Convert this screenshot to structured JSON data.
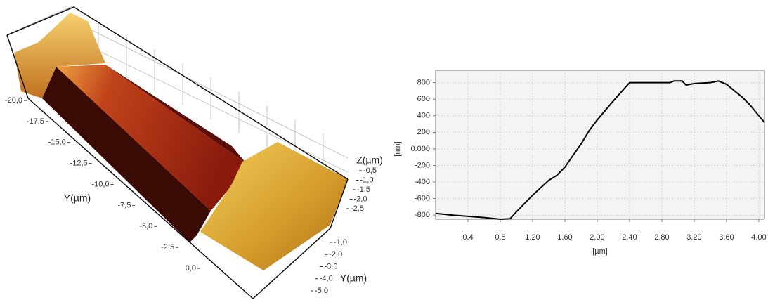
{
  "chart_data": [
    {
      "type": "surface3d",
      "ylabel": "Y(µm)",
      "zlabel": "Z(µm)",
      "xlabel": "Y(µm)",
      "ylim": [
        -20,
        0
      ],
      "yticks": [
        {
          "value": -20,
          "label": "-20,0"
        },
        {
          "value": -17.5,
          "label": "-17,5"
        },
        {
          "value": -15,
          "label": "-15,0"
        },
        {
          "value": -12.5,
          "label": "-12,5"
        },
        {
          "value": -10,
          "label": "-10,0"
        },
        {
          "value": -7.5,
          "label": "-7,5"
        },
        {
          "value": -5,
          "label": "-5,0"
        },
        {
          "value": -2.5,
          "label": "-2,5"
        },
        {
          "value": 0,
          "label": "0,0"
        }
      ],
      "zlim": [
        -2.5,
        -0.5
      ],
      "zticks": [
        {
          "value": -0.5,
          "label": "-0,5"
        },
        {
          "value": -1,
          "label": "-1,0"
        },
        {
          "value": -1.5,
          "label": "-1,5"
        },
        {
          "value": -2,
          "label": "-2,0"
        },
        {
          "value": -2.5,
          "label": "-2,5"
        }
      ],
      "xlim": [
        -5,
        -1
      ],
      "xticks": [
        {
          "value": -1,
          "label": "-1,0"
        },
        {
          "value": -2,
          "label": "-2,0"
        },
        {
          "value": -3,
          "label": "-3,0"
        },
        {
          "value": -4,
          "label": "-4,0"
        },
        {
          "value": -5,
          "label": "-5,0"
        }
      ]
    },
    {
      "type": "line",
      "xlabel": "[µm]",
      "ylabel": "[nm]",
      "grid": true,
      "color": "#000000",
      "x": [
        0,
        0.2,
        0.4,
        0.6,
        0.8,
        0.92,
        1.0,
        1.2,
        1.4,
        1.5,
        1.6,
        1.7,
        1.8,
        1.9,
        2.0,
        2.2,
        2.4,
        2.6,
        2.8,
        2.9,
        2.95,
        3.05,
        3.1,
        3.2,
        3.4,
        3.5,
        3.6,
        3.8,
        3.9,
        4.0,
        4.07
      ],
      "values": [
        -780,
        -800,
        -815,
        -830,
        -850,
        -845,
        -760,
        -560,
        -380,
        -320,
        -220,
        -80,
        60,
        220,
        350,
        580,
        800,
        800,
        800,
        800,
        820,
        820,
        770,
        790,
        800,
        820,
        780,
        620,
        520,
        400,
        320
      ],
      "xlim": [
        0,
        4.07
      ],
      "ylim": [
        -850,
        950
      ],
      "xticks": [
        0.4,
        0.8,
        {
          "value": 1.2,
          "label": "1.20"
        },
        {
          "value": 1.6,
          "label": "1.60"
        },
        {
          "value": 2,
          "label": "2.00"
        },
        {
          "value": 2.4,
          "label": "2.40"
        },
        {
          "value": 2.8,
          "label": "2.80"
        },
        {
          "value": 3.2,
          "label": "3.20"
        },
        {
          "value": 3.6,
          "label": "3.60"
        },
        {
          "value": 4,
          "label": "4.00"
        }
      ],
      "yticks": [
        800,
        600,
        400,
        200,
        {
          "value": 0,
          "label": "0.000"
        },
        -200,
        -400,
        -600,
        -800
      ]
    }
  ]
}
